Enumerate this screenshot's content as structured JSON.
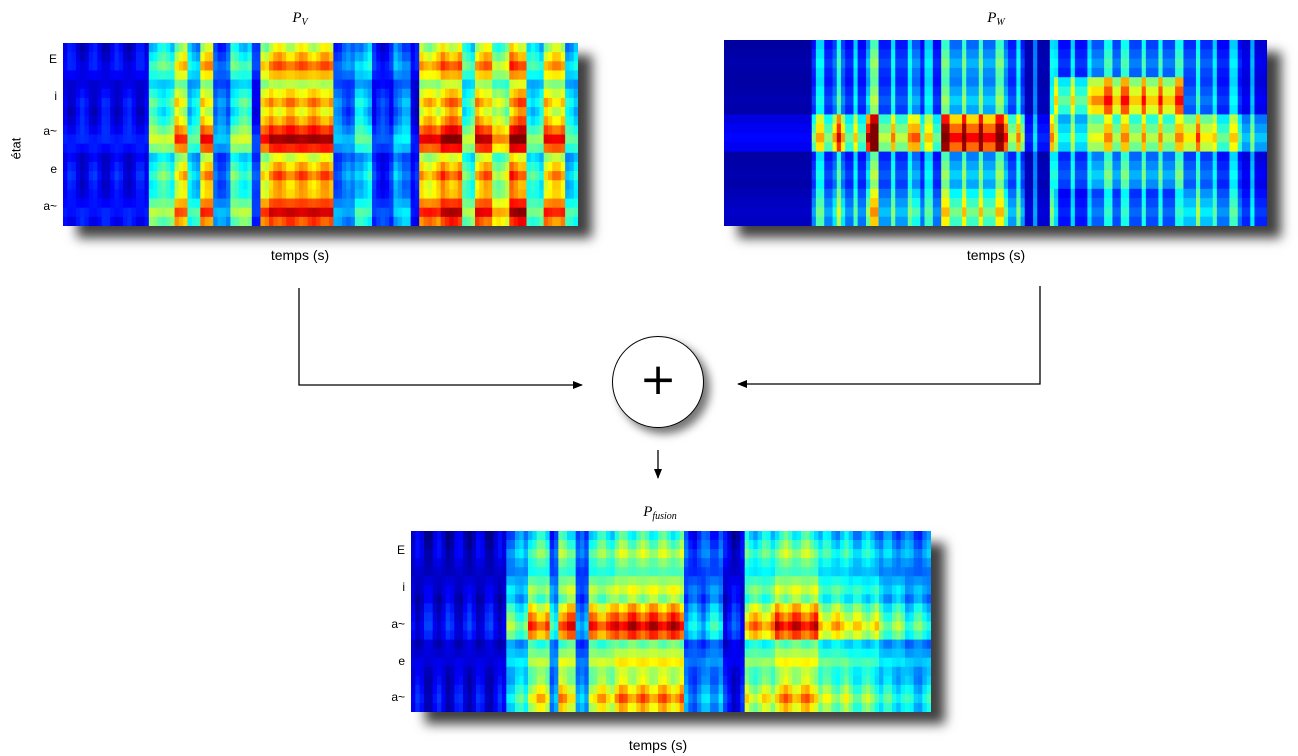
{
  "panels": {
    "pv": {
      "title_main": "P",
      "title_sub": "V",
      "ylabel": "état",
      "ticks": [
        "E",
        "i",
        "a~",
        "e",
        "a~"
      ],
      "xlabel": "temps (s)"
    },
    "pw": {
      "title_main": "P",
      "title_sub": "W",
      "xlabel": "temps (s)"
    },
    "fusion": {
      "title_main": "P",
      "title_sub": "fusion",
      "ticks": [
        "E",
        "i",
        "a~",
        "e",
        "a~"
      ],
      "xlabel": "temps (s)"
    }
  },
  "operator": {
    "symbol": "+"
  },
  "colors": {
    "colormap": "jet",
    "arrow": "#000000",
    "background": "#ffffff"
  }
}
